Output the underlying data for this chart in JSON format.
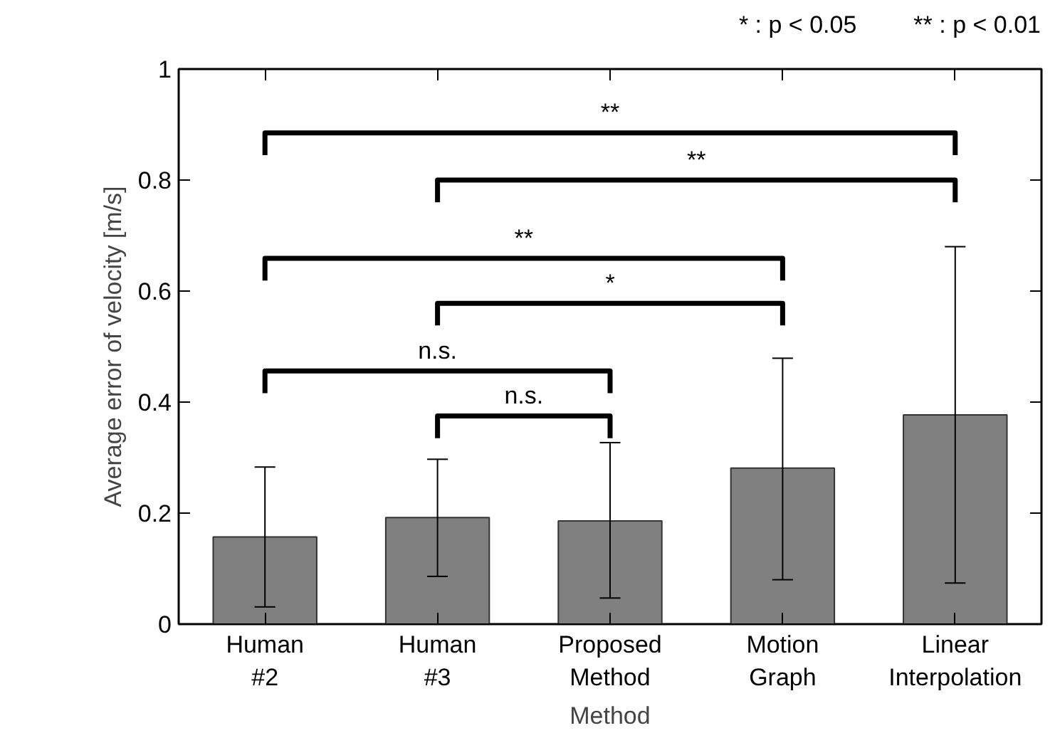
{
  "chart_data": {
    "type": "bar",
    "xlabel": "Method",
    "ylabel": "Average error of velocity [m/s]",
    "categories": [
      "Human\n#2",
      "Human\n#3",
      "Proposed\nMethod",
      "Motion\nGraph",
      "Linear\nInterpolation"
    ],
    "values": [
      0.157,
      0.192,
      0.186,
      0.281,
      0.377
    ],
    "color": "#808080",
    "errors": [
      [
        0.031,
        0.283
      ],
      [
        0.086,
        0.297
      ],
      [
        0.047,
        0.327
      ],
      [
        0.08,
        0.479
      ],
      [
        0.074,
        0.68
      ]
    ],
    "ylim": [
      0,
      1
    ],
    "yticks": [
      0,
      0.2,
      0.4,
      0.6,
      0.8,
      1
    ],
    "grid": false,
    "annotations": [
      "* : p < 0.05",
      "** : p < 0.01",
      "**",
      "**",
      "**",
      "*",
      "n.s.",
      "n.s."
    ]
  }
}
